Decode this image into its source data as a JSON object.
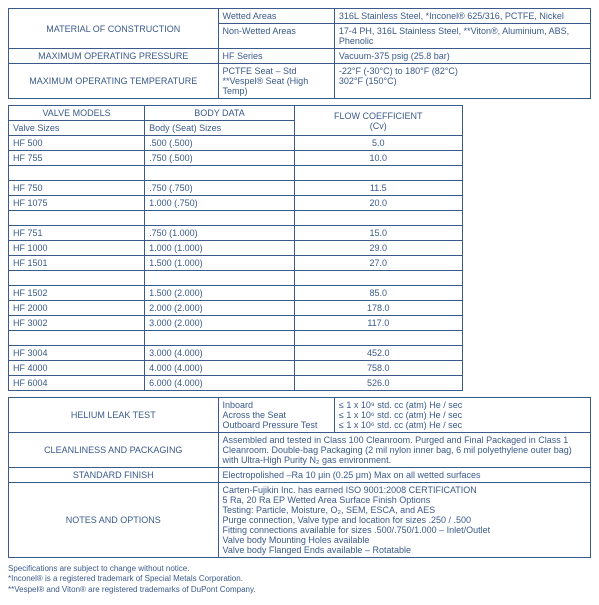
{
  "top": {
    "rows": [
      {
        "label": "MATERIAL OF CONSTRUCTION",
        "rowspan": 2,
        "sub": "Wetted Areas",
        "val": "316L Stainless Steel, *Inconel® 625/316, PCTFE, Nickel"
      },
      {
        "sub": "Non-Wetted Areas",
        "val": "17-4 PH, 316L Stainless Steel, **Viton®, Aluminium, ABS, Phenolic"
      },
      {
        "label": "MAXIMUM OPERATING PRESSURE",
        "sub": "HF Series",
        "val": "Vacuum-375 psig (25.8 bar)"
      },
      {
        "label": "MAXIMUM OPERATING TEMPERATURE",
        "sub": "PCTFE Seat – Std\n**Vespel® Seat (High Temp)",
        "val": "-22°F (-30°C) to 180°F (82°C)\n302°F (150°C)"
      }
    ]
  },
  "valves": {
    "h1": "VALVE MODELS",
    "h2": "BODY DATA",
    "h3": "FLOW COEFFICIENT\n(Cv)",
    "sub1": "Valve Sizes",
    "sub2": "Body (Seat) Sizes",
    "groups": [
      [
        {
          "m": "HF 500",
          "b": ".500 (.500)",
          "c": "5.0"
        },
        {
          "m": "HF 755",
          "b": ".750 (.500)",
          "c": "10.0"
        }
      ],
      [
        {
          "m": "HF 750",
          "b": ".750 (.750)",
          "c": "11.5"
        },
        {
          "m": "HF 1075",
          "b": "1.000 (.750)",
          "c": "20.0"
        }
      ],
      [
        {
          "m": "HF 751",
          "b": ".750 (1.000)",
          "c": "15.0"
        },
        {
          "m": "HF 1000",
          "b": "1.000 (1.000)",
          "c": "29.0"
        },
        {
          "m": "HF 1501",
          "b": "1.500 (1.000)",
          "c": "27.0"
        }
      ],
      [
        {
          "m": "HF 1502",
          "b": "1.500 (2.000)",
          "c": "85.0"
        },
        {
          "m": "HF 2000",
          "b": "2.000 (2.000)",
          "c": "178.0"
        },
        {
          "m": "HF 3002",
          "b": "3.000 (2.000)",
          "c": "117.0"
        }
      ],
      [
        {
          "m": "HF 3004",
          "b": "3.000 (4.000)",
          "c": "452.0"
        },
        {
          "m": "HF 4000",
          "b": "4.000 (4.000)",
          "c": "758.0"
        },
        {
          "m": "HF 6004",
          "b": "6.000 (4.000)",
          "c": "526.0"
        }
      ]
    ]
  },
  "bottom": {
    "rows": [
      {
        "label": "HELIUM LEAK TEST",
        "mid": "Inboard\nAcross the Seat\nOutboard Pressure Test",
        "val": "≤ 1 x 10⁹ std. cc (atm) He / sec\n≤ 1 x 10⁶ std. cc (atm) He / sec\n≤ 1 x 10⁶ std. cc (atm) He / sec"
      },
      {
        "label": "CLEANLINESS AND PACKAGING",
        "span": true,
        "val": "Assembled and tested in Class 100 Cleanroom. Purged and Final Packaged in Class 1 Cleanroom. Double-bag Packaging (2 mil nylon inner bag, 6 mil polyethylene outer bag) with Ultra-High Purity N₂ gas environment."
      },
      {
        "label": "STANDARD FINISH",
        "span": true,
        "val": "Electropolished –Ra 10 μin (0.25 μm) Max on all wetted surfaces"
      },
      {
        "label": "NOTES AND OPTIONS",
        "span": true,
        "val": "Carten-Fujikin Inc. has earned ISO 9001:2008 CERTIFICATION\n5 Ra, 20 Ra EP Wetted Area Surface Finish Options\nTesting: Particle, Moisture, O₂, SEM, ESCA, and AES\nPurge connection, Valve type and location for sizes .250 / .500\nFitting connections available for sizes .500/.750/1.000 – Inlet/Outlet\nValve body Mounting Holes available\nValve body Flanged Ends available – Rotatable"
      }
    ]
  },
  "footnotes": [
    "Specifications are subject to change without notice.",
    "*Inconel® is a registered trademark of Special Metals Corporation.",
    "**Vespel® and Viton® are registered trademarks of DuPont Company."
  ]
}
